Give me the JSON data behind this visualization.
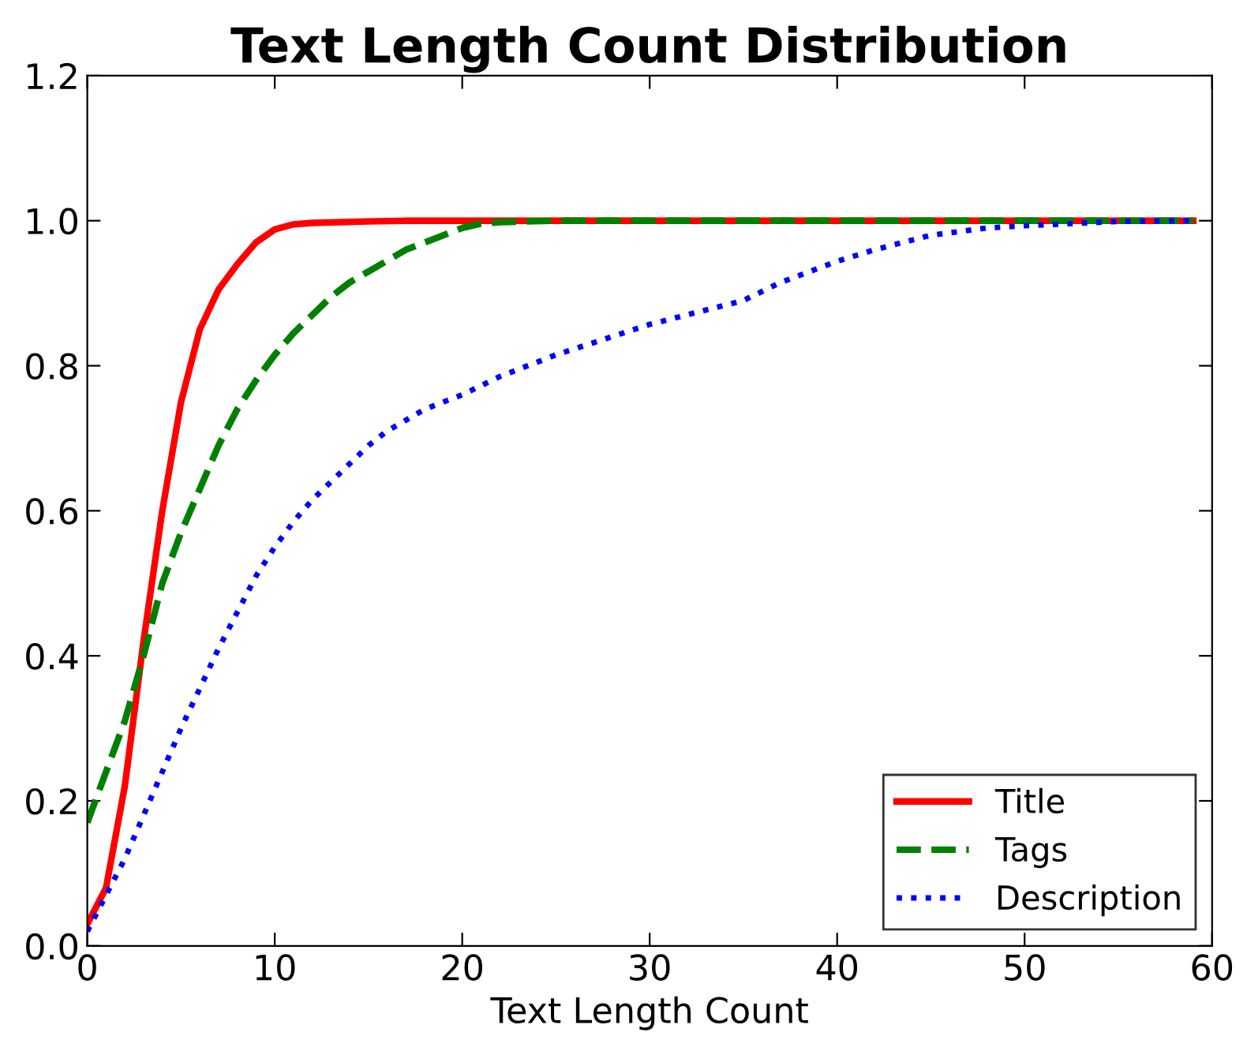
{
  "chart_data": {
    "type": "line",
    "title": "Text Length Count Distribution",
    "xlabel": "Text Length Count",
    "xlim": [
      0,
      60
    ],
    "xticks": [
      0,
      10,
      20,
      30,
      40,
      50,
      60
    ],
    "ylim": [
      0,
      1.2
    ],
    "yticks": [
      {
        "value": 0,
        "label": "0.0"
      },
      {
        "value": 0.2,
        "label": "0.2"
      },
      {
        "value": 0.4,
        "label": "0.4"
      },
      {
        "value": 0.6,
        "label": "0.6"
      },
      {
        "value": 0.8,
        "label": "0.8"
      },
      {
        "value": 1.0,
        "label": "1.0"
      },
      {
        "value": 1.2,
        "label": "1.2"
      }
    ],
    "grid": false,
    "legend": "bottom right",
    "marker": "none",
    "series": [
      {
        "name": "Title",
        "color": "#ff0000",
        "line_style": "solid",
        "x": [
          0,
          1,
          2,
          3,
          4,
          5,
          6,
          7,
          8,
          9,
          10,
          11,
          12,
          15,
          17,
          59
        ],
        "values": [
          0.03,
          0.08,
          0.22,
          0.42,
          0.6,
          0.75,
          0.85,
          0.905,
          0.94,
          0.97,
          0.988,
          0.995,
          0.997,
          0.999,
          1.0,
          1.0
        ]
      },
      {
        "name": "Tags",
        "color": "#008000",
        "line_style": "dashed",
        "x": [
          0,
          1,
          2,
          3,
          4,
          5,
          6,
          7,
          8,
          9,
          10,
          11,
          12,
          13,
          14,
          15,
          16,
          17,
          18,
          19,
          20,
          21,
          22,
          25,
          59
        ],
        "values": [
          0.17,
          0.24,
          0.31,
          0.4,
          0.5,
          0.57,
          0.63,
          0.69,
          0.74,
          0.78,
          0.815,
          0.845,
          0.87,
          0.895,
          0.915,
          0.93,
          0.945,
          0.96,
          0.97,
          0.98,
          0.99,
          0.996,
          0.998,
          1.0,
          1.0
        ]
      },
      {
        "name": "Description",
        "color": "#0000ff",
        "line_style": "dotted",
        "x": [
          0,
          1,
          2,
          3,
          4,
          5,
          6,
          7,
          8,
          9,
          10,
          11,
          12,
          13,
          14,
          15,
          16,
          17,
          18,
          20,
          22,
          25,
          30,
          35,
          37,
          40,
          42,
          45,
          48,
          50,
          55,
          59
        ],
        "values": [
          0.02,
          0.07,
          0.12,
          0.18,
          0.24,
          0.3,
          0.355,
          0.41,
          0.46,
          0.51,
          0.55,
          0.585,
          0.615,
          0.64,
          0.665,
          0.69,
          0.71,
          0.725,
          0.74,
          0.76,
          0.785,
          0.815,
          0.857,
          0.89,
          0.915,
          0.944,
          0.96,
          0.98,
          0.99,
          0.993,
          0.999,
          1.0
        ]
      }
    ]
  }
}
